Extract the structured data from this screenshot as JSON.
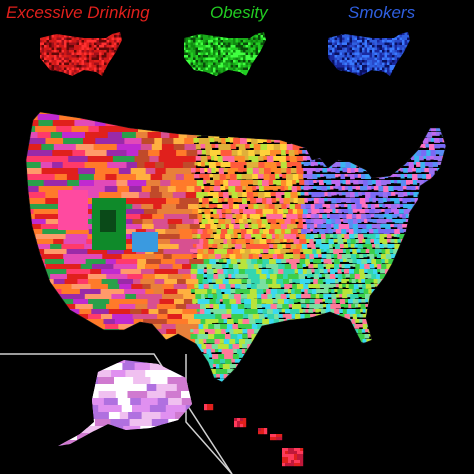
{
  "legend": {
    "drinking": {
      "label": "Excessive Drinking",
      "color": "#e0201c"
    },
    "obesity": {
      "label": "Obesity",
      "color": "#22cc22"
    },
    "smokers": {
      "label": "Smokers",
      "color": "#2f5fe0"
    }
  },
  "map": {
    "background": "#000000",
    "inset_border_color": "#d0d0d0",
    "palette": [
      "#e0201c",
      "#ff7a2a",
      "#ffd23a",
      "#b9e43a",
      "#3ccf4a",
      "#33d6b0",
      "#3bdaf0",
      "#3a8cf0",
      "#6a5af5",
      "#b454e8",
      "#ff56a8",
      "#ff8fb0",
      "#c0603a"
    ],
    "regions": {
      "west": [
        "#e0201c",
        "#ff3a6a",
        "#c02ad0",
        "#ff7a2a",
        "#e24ab8",
        "#9a2aa8",
        "#ff9a6a",
        "#2aa04a"
      ],
      "plains": [
        "#ff7a2a",
        "#e0201c",
        "#c04a2a",
        "#ffb040",
        "#d85090",
        "#e8803a"
      ],
      "midwest": [
        "#ffd23a",
        "#ff8a2a",
        "#b9e43a",
        "#ff5a3a",
        "#e0b03a",
        "#ff6aa0"
      ],
      "south": [
        "#3bdaf0",
        "#33d6b0",
        "#3ccf4a",
        "#7ae0a0",
        "#ff7a9a",
        "#b9e43a"
      ],
      "east": [
        "#5a8cf5",
        "#7a6af5",
        "#9a70f0",
        "#3bb4f0",
        "#c06af0",
        "#ff70c0"
      ],
      "alaska": [
        "#f0c0f0",
        "#e090f0",
        "#b070e0",
        "#ffffff",
        "#d07ad0"
      ],
      "hawaii": [
        "#e0201c",
        "#c0183a",
        "#ff3a5a"
      ]
    }
  }
}
